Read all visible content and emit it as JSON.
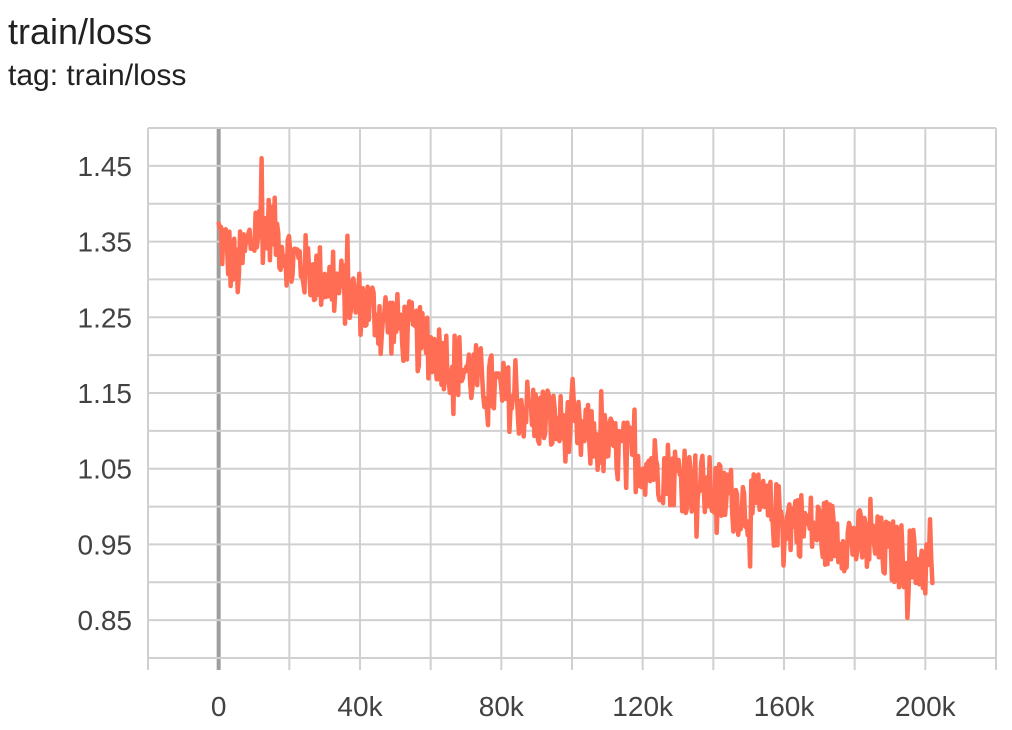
{
  "title": "train/loss",
  "subtitle": "tag: train/loss",
  "colors": {
    "series": "#ff6e54",
    "grid": "#d0d0d0",
    "zero_line": "#9e9e9e",
    "axis_text": "#424242"
  },
  "chart_data": {
    "type": "line",
    "title": "train/loss",
    "xlabel": "",
    "ylabel": "",
    "xlim": [
      -20000,
      220000
    ],
    "ylim": [
      0.8,
      1.5
    ],
    "x_ticks": [
      0,
      40000,
      80000,
      120000,
      160000,
      200000
    ],
    "x_tick_labels": [
      "0",
      "40k",
      "80k",
      "120k",
      "160k",
      "200k"
    ],
    "y_ticks": [
      0.85,
      0.95,
      1.05,
      1.15,
      1.25,
      1.35,
      1.45
    ],
    "y_tick_labels": [
      "0.85",
      "0.95",
      "1.05",
      "1.15",
      "1.25",
      "1.35",
      "1.45"
    ],
    "grid": true,
    "legend": "none",
    "series": [
      {
        "x_start": 0,
        "x_end": 202000,
        "trend_points": [
          [
            0,
            1.36
          ],
          [
            5000,
            1.31
          ],
          [
            10000,
            1.36
          ],
          [
            15000,
            1.37
          ],
          [
            20000,
            1.33
          ],
          [
            30000,
            1.3
          ],
          [
            40000,
            1.27
          ],
          [
            50000,
            1.24
          ],
          [
            60000,
            1.21
          ],
          [
            70000,
            1.18
          ],
          [
            80000,
            1.15
          ],
          [
            90000,
            1.12
          ],
          [
            100000,
            1.1
          ],
          [
            110000,
            1.08
          ],
          [
            120000,
            1.06
          ],
          [
            130000,
            1.04
          ],
          [
            140000,
            1.02
          ],
          [
            150000,
            1.0
          ],
          [
            160000,
            0.985
          ],
          [
            170000,
            0.97
          ],
          [
            180000,
            0.955
          ],
          [
            190000,
            0.94
          ],
          [
            202000,
            0.92
          ]
        ],
        "noise_amplitude": 0.045,
        "num_points": 600,
        "max_point": [
          12000,
          1.46
        ],
        "min_point": [
          195000,
          0.853
        ]
      }
    ]
  }
}
